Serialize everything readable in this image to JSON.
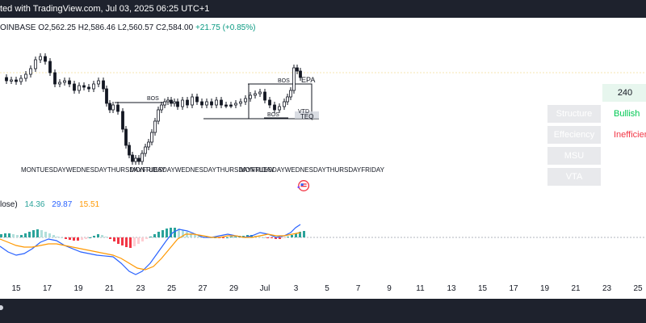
{
  "header": {
    "title": "ted with TradingView.com, Jul 03, 2025 06:25 UTC+1"
  },
  "ohlc": {
    "symbol": "OINBASE",
    "o_label": "O",
    "o": "2,562.25",
    "h_label": "H",
    "h": "2,586.46",
    "l_label": "L",
    "l": "2,560.57",
    "c_label": "C",
    "c": "2,584.00",
    "change": "+21.75 (+0.85%)"
  },
  "annotations": {
    "bos_1": "BOS",
    "bos_2": "BOS",
    "bos_3": "BOS",
    "epa": "EPA",
    "vtd": "VTD",
    "teq": "TEQ",
    "days_1": "MONTUESDAYWEDNESDAYTHURSDAYFRIDAY",
    "days_2": "MONTUESDAYWEDNESDAYTHURSDAYFRIDAY",
    "days_3": "MONTUESDAYWEDNESDAYTHURSDAYFRIDAY"
  },
  "panel": {
    "timeframe": "240",
    "rows": [
      {
        "label": "Structure",
        "value": "Bullish",
        "value_color": "#00c853"
      },
      {
        "label": "Effeciency",
        "value": "Inefficient",
        "value_color": "#f23645"
      },
      {
        "label": "MSU",
        "value": ""
      },
      {
        "label": "VTA",
        "value": ""
      }
    ]
  },
  "oscillator": {
    "name": "lose)",
    "hist": "14.36",
    "macd": "29.87",
    "signal": "15.51",
    "colors": {
      "hist": "#2aa39a",
      "macd": "#2962ff",
      "signal": "#ff9800"
    }
  },
  "xaxis": {
    "ticks": [
      "15",
      "17",
      "19",
      "21",
      "23",
      "25",
      "27",
      "29",
      "Jul",
      "3",
      "5",
      "7",
      "9",
      "11",
      "13",
      "15",
      "17",
      "19",
      "21",
      "23",
      "25"
    ]
  },
  "colors": {
    "up": "#089981",
    "down": "#f23645",
    "candle": "#131722"
  }
}
